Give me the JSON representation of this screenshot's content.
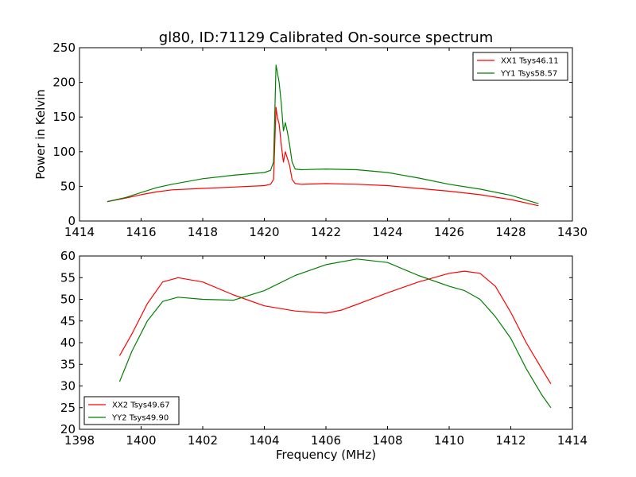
{
  "title": "gl80, ID:71129 Calibrated On-source spectrum",
  "chart_data": [
    {
      "type": "line",
      "title": "gl80, ID:71129 Calibrated On-source spectrum",
      "xlabel": "",
      "ylabel": "Power in Kelvin",
      "xlim": [
        1414,
        1430
      ],
      "ylim": [
        0,
        250
      ],
      "x_ticks": [
        1414,
        1416,
        1418,
        1420,
        1422,
        1424,
        1426,
        1428,
        1430
      ],
      "y_ticks": [
        0,
        50,
        100,
        150,
        200,
        250
      ],
      "grid": false,
      "legend_position": "top-right",
      "series": [
        {
          "name": "XX1 Tsys46.11",
          "color": "#ff0000",
          "x": [
            1414.9,
            1415.5,
            1416.0,
            1416.5,
            1417.0,
            1418.0,
            1419.0,
            1420.0,
            1420.2,
            1420.3,
            1420.38,
            1420.42,
            1420.48,
            1420.55,
            1420.62,
            1420.68,
            1420.75,
            1420.82,
            1420.9,
            1421.0,
            1421.2,
            1422.0,
            1423.0,
            1424.0,
            1425.0,
            1426.0,
            1427.0,
            1428.0,
            1428.9
          ],
          "values": [
            28,
            33,
            38,
            42,
            45,
            47,
            49,
            51,
            53,
            60,
            164,
            150,
            140,
            110,
            85,
            100,
            90,
            80,
            60,
            54,
            53,
            54,
            53,
            51,
            47,
            43,
            38,
            31,
            22
          ]
        },
        {
          "name": "YY1 Tsys58.57",
          "color": "#008000",
          "x": [
            1414.9,
            1415.5,
            1416.0,
            1416.5,
            1417.0,
            1418.0,
            1419.0,
            1420.0,
            1420.2,
            1420.3,
            1420.38,
            1420.42,
            1420.48,
            1420.55,
            1420.62,
            1420.68,
            1420.75,
            1420.82,
            1420.9,
            1421.0,
            1421.2,
            1422.0,
            1423.0,
            1424.0,
            1425.0,
            1426.0,
            1427.0,
            1428.0,
            1428.9
          ],
          "values": [
            28,
            34,
            41,
            48,
            53,
            61,
            66,
            70,
            73,
            85,
            225,
            215,
            200,
            170,
            130,
            142,
            128,
            110,
            85,
            75,
            74,
            75,
            74,
            70,
            62,
            53,
            46,
            37,
            25
          ]
        }
      ]
    },
    {
      "type": "line",
      "title": "",
      "xlabel": "Frequency (MHz)",
      "ylabel": "",
      "xlim": [
        1398,
        1414
      ],
      "ylim": [
        20,
        60
      ],
      "x_ticks": [
        1398,
        1400,
        1402,
        1404,
        1406,
        1408,
        1410,
        1412,
        1414
      ],
      "y_ticks": [
        20,
        25,
        30,
        35,
        40,
        45,
        50,
        55,
        60
      ],
      "grid": false,
      "legend_position": "bottom-left",
      "series": [
        {
          "name": "XX2 Tsys49.67",
          "color": "#ff0000",
          "x": [
            1399.3,
            1399.7,
            1400.2,
            1400.7,
            1401.2,
            1402.0,
            1403.0,
            1404.0,
            1405.0,
            1406.0,
            1406.5,
            1407.0,
            1408.0,
            1409.0,
            1410.0,
            1410.5,
            1411.0,
            1411.5,
            1412.0,
            1412.5,
            1413.0,
            1413.3
          ],
          "values": [
            37,
            42,
            49,
            54,
            55,
            54,
            51,
            48.5,
            47.3,
            46.8,
            47.5,
            48.8,
            51.5,
            54,
            56,
            56.5,
            56,
            53,
            47,
            40,
            34,
            30.5
          ]
        },
        {
          "name": "YY2 Tsys49.90",
          "color": "#008000",
          "x": [
            1399.3,
            1399.7,
            1400.2,
            1400.7,
            1401.2,
            1402.0,
            1403.0,
            1404.0,
            1405.0,
            1406.0,
            1407.0,
            1408.0,
            1409.0,
            1410.0,
            1410.5,
            1411.0,
            1411.5,
            1412.0,
            1412.5,
            1413.0,
            1413.3
          ],
          "values": [
            31,
            38,
            45,
            49.5,
            50.5,
            50,
            49.8,
            52,
            55.5,
            58,
            59.3,
            58.5,
            55.5,
            53,
            52,
            50,
            46,
            41,
            34,
            28,
            25
          ]
        }
      ]
    }
  ]
}
